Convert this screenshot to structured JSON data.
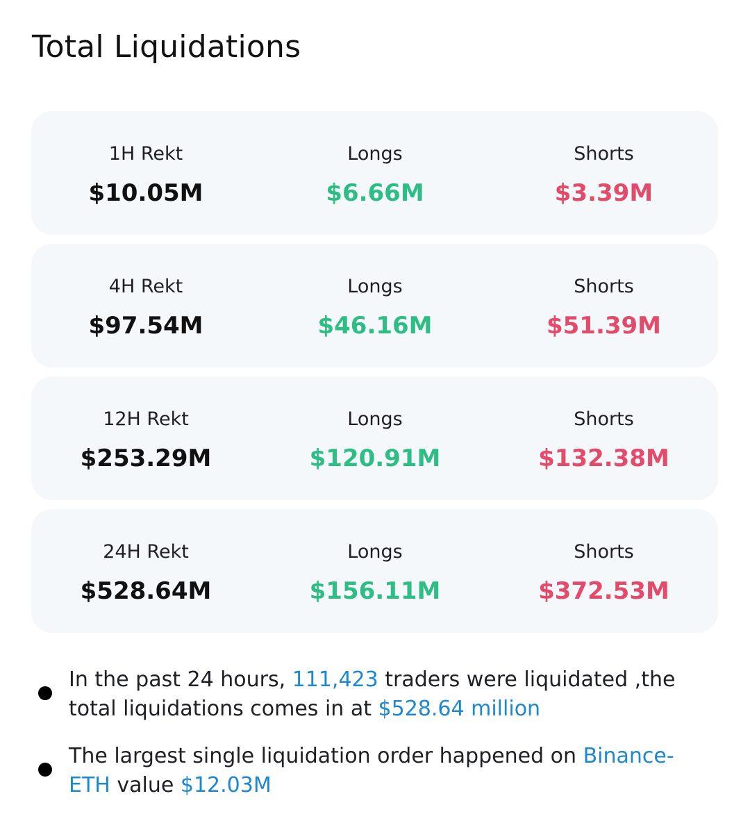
{
  "title": "Total Liquidations",
  "colors": {
    "longs": "#2ebd85",
    "shorts": "#e24b6a",
    "highlight": "#1e88cf",
    "card_bg": "#f5f8fb"
  },
  "cards": [
    {
      "period_label": "1H Rekt",
      "total": "$10.05M",
      "longs_label": "Longs",
      "longs": "$6.66M",
      "shorts_label": "Shorts",
      "shorts": "$3.39M"
    },
    {
      "period_label": "4H Rekt",
      "total": "$97.54M",
      "longs_label": "Longs",
      "longs": "$46.16M",
      "shorts_label": "Shorts",
      "shorts": "$51.39M"
    },
    {
      "period_label": "12H Rekt",
      "total": "$253.29M",
      "longs_label": "Longs",
      "longs": "$120.91M",
      "shorts_label": "Shorts",
      "shorts": "$132.38M"
    },
    {
      "period_label": "24H Rekt",
      "total": "$528.64M",
      "longs_label": "Longs",
      "longs": "$156.11M",
      "shorts_label": "Shorts",
      "shorts": "$372.53M"
    }
  ],
  "notes": {
    "first": {
      "pre": "In the past 24 hours, ",
      "traders": "111,423",
      "mid": " traders were liquidated ,the total liquidations comes in at ",
      "amount": "$528.64 million"
    },
    "second": {
      "pre": "The largest single liquidation order happened on ",
      "exchange": "Binance-ETH",
      "mid": " value ",
      "amount": "$12.03M"
    }
  }
}
